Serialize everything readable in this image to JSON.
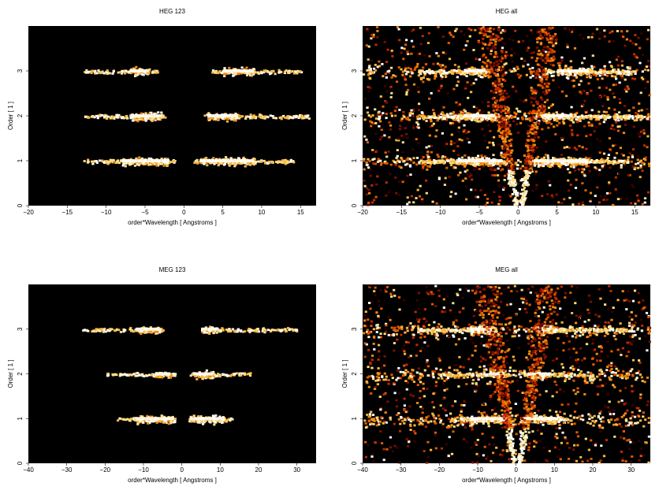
{
  "colors": {
    "background": "#000000",
    "page": "#ffffff",
    "colormap": [
      "#3a0000",
      "#7a0f00",
      "#c02a00",
      "#e25a00",
      "#f08a10",
      "#f8b840",
      "#fde08a",
      "#ffffff"
    ]
  },
  "chart_data": [
    {
      "type": "heatmap",
      "title": "HEG 123",
      "xlabel": "order*Wavelength [ Angstroms ]",
      "ylabel": "Order [ 1 ]",
      "xlim": [
        -20,
        17
      ],
      "ylim": [
        0,
        4
      ],
      "xticks": [
        -20,
        -15,
        -10,
        -5,
        0,
        5,
        10,
        15
      ],
      "yticks": [
        0,
        1,
        2,
        3
      ],
      "colormap": "hot",
      "bands": [
        {
          "order": 1,
          "segments": [
            [
              -13,
              -1.2
            ],
            [
              1.2,
              14
            ]
          ],
          "bright": [
            [
              -8,
              -2
            ],
            [
              2,
              9
            ]
          ]
        },
        {
          "order": 2,
          "segments": [
            [
              -13,
              -2.5
            ],
            [
              2.5,
              16
            ]
          ],
          "bright": [
            [
              -7,
              -3
            ],
            [
              3,
              7
            ]
          ]
        },
        {
          "order": 3,
          "segments": [
            [
              -13,
              -3.5
            ],
            [
              3.5,
              15
            ]
          ],
          "bright": [
            [
              -7,
              -4.5
            ],
            [
              5,
              9
            ]
          ]
        }
      ],
      "center_cone": false,
      "scatter": false
    },
    {
      "type": "heatmap",
      "title": "HEG all",
      "xlabel": "order*Wavelength [ Angstroms ]",
      "ylabel": "Order [ 1 ]",
      "xlim": [
        -20,
        17
      ],
      "ylim": [
        0,
        4
      ],
      "xticks": [
        -20,
        -15,
        -10,
        -5,
        0,
        5,
        10,
        15
      ],
      "yticks": [
        0,
        1,
        2,
        3
      ],
      "colormap": "hot",
      "bands": [
        {
          "order": 1,
          "segments": [
            [
              -13,
              -1.2
            ],
            [
              1.2,
              14
            ]
          ],
          "bright": [
            [
              -8,
              -2
            ],
            [
              2,
              9
            ]
          ]
        },
        {
          "order": 2,
          "segments": [
            [
              -13,
              -2.5
            ],
            [
              2.5,
              16
            ]
          ],
          "bright": [
            [
              -7,
              -3
            ],
            [
              3,
              7
            ]
          ]
        },
        {
          "order": 3,
          "segments": [
            [
              -13,
              -3.5
            ],
            [
              3.5,
              15
            ]
          ],
          "bright": [
            [
              -7,
              -4.5
            ],
            [
              5,
              9
            ]
          ]
        }
      ],
      "center_cone": true,
      "scatter": true
    },
    {
      "type": "heatmap",
      "title": "MEG 123",
      "xlabel": "order*Wavelength [ Angstroms ]",
      "ylabel": "Order [ 1 ]",
      "xlim": [
        -40,
        35
      ],
      "ylim": [
        0,
        4
      ],
      "xticks": [
        -40,
        -30,
        -20,
        -10,
        0,
        10,
        20,
        30
      ],
      "yticks": [
        0,
        1,
        2,
        3
      ],
      "colormap": "hot",
      "bands": [
        {
          "order": 1,
          "segments": [
            [
              -17,
              -2
            ],
            [
              1,
              13
            ]
          ],
          "bright": [
            [
              -12,
              -2
            ],
            [
              2,
              11
            ]
          ]
        },
        {
          "order": 2,
          "segments": [
            [
              -20,
              -2
            ],
            [
              2,
              18
            ]
          ],
          "bright": [
            [
              -7,
              -3
            ],
            [
              3,
              8
            ]
          ]
        },
        {
          "order": 3,
          "segments": [
            [
              -26,
              -5
            ],
            [
              5,
              30
            ]
          ],
          "bright": [
            [
              -12,
              -6
            ],
            [
              5,
              9
            ]
          ]
        }
      ],
      "center_cone": false,
      "scatter": false
    },
    {
      "type": "heatmap",
      "title": "MEG all",
      "xlabel": "order*Wavelength [ Angstroms ]",
      "ylabel": "Order [ 1 ]",
      "xlim": [
        -40,
        35
      ],
      "ylim": [
        0,
        4
      ],
      "xticks": [
        -40,
        -30,
        -20,
        -10,
        0,
        10,
        20,
        30
      ],
      "yticks": [
        0,
        1,
        2,
        3
      ],
      "colormap": "hot",
      "bands": [
        {
          "order": 1,
          "segments": [
            [
              -17,
              -2
            ],
            [
              1,
              13
            ]
          ],
          "bright": [
            [
              -12,
              -2
            ],
            [
              2,
              11
            ]
          ]
        },
        {
          "order": 2,
          "segments": [
            [
              -20,
              -2
            ],
            [
              2,
              18
            ]
          ],
          "bright": [
            [
              -7,
              -3
            ],
            [
              3,
              8
            ]
          ]
        },
        {
          "order": 3,
          "segments": [
            [
              -26,
              -5
            ],
            [
              5,
              30
            ]
          ],
          "bright": [
            [
              -12,
              -6
            ],
            [
              5,
              9
            ]
          ]
        }
      ],
      "center_cone": true,
      "scatter": true
    }
  ]
}
